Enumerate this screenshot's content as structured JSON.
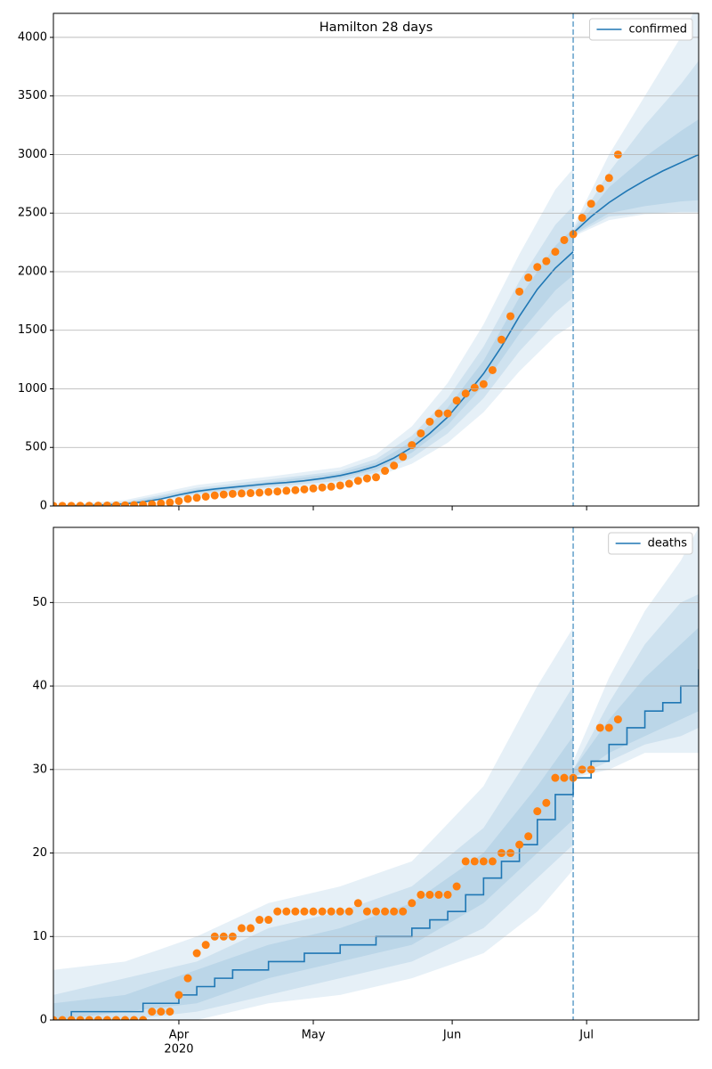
{
  "chart_data": [
    {
      "type": "line",
      "title": "Hamilton 28 days",
      "xlim": [
        0,
        144
      ],
      "xticks": [
        28,
        58,
        89,
        119
      ],
      "ylim": [
        0,
        4205
      ],
      "yticks": [
        0,
        500,
        1000,
        1500,
        2000,
        2500,
        3000,
        3500,
        4000
      ],
      "grid": true,
      "vline_x": 116,
      "legend": "upper right",
      "band_color": "#1f77b4",
      "band_opacity": 0.11,
      "bands": [
        {
          "x": [
            0,
            16,
            32,
            48,
            64,
            72,
            80,
            88,
            96,
            104,
            112,
            116
          ],
          "lower": [
            0,
            5,
            80,
            140,
            190,
            250,
            360,
            540,
            800,
            1150,
            1450,
            1550
          ],
          "upper": [
            5,
            50,
            180,
            250,
            330,
            440,
            680,
            1050,
            1550,
            2150,
            2700,
            2880
          ]
        },
        {
          "x": [
            0,
            16,
            32,
            48,
            64,
            72,
            80,
            88,
            96,
            104,
            112,
            116
          ],
          "lower": [
            0,
            10,
            100,
            160,
            215,
            285,
            410,
            620,
            920,
            1320,
            1650,
            1780
          ],
          "upper": [
            3,
            35,
            155,
            225,
            300,
            400,
            600,
            920,
            1360,
            1920,
            2400,
            2560
          ]
        },
        {
          "x": [
            0,
            16,
            32,
            48,
            64,
            72,
            80,
            88,
            96,
            104,
            112,
            116
          ],
          "lower": [
            0,
            14,
            112,
            175,
            238,
            310,
            455,
            690,
            1030,
            1470,
            1840,
            1970
          ],
          "upper": [
            1,
            25,
            140,
            205,
            282,
            370,
            550,
            840,
            1240,
            1780,
            2220,
            2370
          ]
        },
        {
          "x": [
            116,
            124,
            132,
            140,
            144
          ],
          "lower": [
            2300,
            2440,
            2490,
            2500,
            2500
          ],
          "upper": [
            2380,
            3000,
            3500,
            4000,
            4300
          ]
        },
        {
          "x": [
            116,
            124,
            132,
            140,
            144
          ],
          "lower": [
            2310,
            2470,
            2500,
            2510,
            2510
          ],
          "upper": [
            2360,
            2850,
            3250,
            3600,
            3800
          ]
        },
        {
          "x": [
            116,
            124,
            132,
            140,
            144
          ],
          "lower": [
            2320,
            2500,
            2560,
            2600,
            2610
          ],
          "upper": [
            2345,
            2720,
            2980,
            3200,
            3300
          ]
        }
      ],
      "series": [
        {
          "name": "confirmed",
          "color": "#1f77b4",
          "style": "line",
          "x": [
            0,
            4,
            8,
            12,
            16,
            20,
            24,
            28,
            32,
            36,
            40,
            44,
            48,
            52,
            56,
            60,
            64,
            68,
            72,
            76,
            80,
            84,
            88,
            92,
            96,
            100,
            104,
            108,
            112,
            116
          ],
          "values": [
            0,
            2,
            5,
            10,
            18,
            35,
            60,
            95,
            125,
            145,
            160,
            175,
            190,
            200,
            215,
            235,
            260,
            295,
            340,
            410,
            500,
            620,
            760,
            940,
            1130,
            1360,
            1620,
            1850,
            2030,
            2170
          ]
        },
        {
          "color": "#1f77b4",
          "style": "line",
          "x": [
            116,
            120,
            124,
            128,
            132,
            136,
            140,
            144
          ],
          "values": [
            2330,
            2470,
            2590,
            2690,
            2780,
            2860,
            2930,
            3000
          ]
        },
        {
          "color": "#ff7f0e",
          "style": "markers",
          "x": [
            0,
            2,
            4,
            6,
            8,
            10,
            12,
            14,
            16,
            18,
            20,
            22,
            24,
            26,
            28,
            30,
            32,
            34,
            36,
            38,
            40,
            42,
            44,
            46,
            48,
            50,
            52,
            54,
            56,
            58,
            60,
            62,
            64,
            66,
            68,
            70,
            72,
            74,
            76,
            78,
            80,
            82,
            84,
            86,
            88,
            90,
            92,
            94,
            96,
            98,
            100,
            102,
            104,
            106,
            108,
            110,
            112,
            114,
            116,
            118,
            120,
            122,
            124,
            126
          ],
          "values": [
            1,
            1,
            1,
            2,
            2,
            3,
            4,
            5,
            6,
            8,
            10,
            15,
            22,
            30,
            42,
            60,
            70,
            80,
            90,
            98,
            104,
            107,
            110,
            114,
            120,
            124,
            130,
            135,
            142,
            150,
            158,
            165,
            175,
            190,
            215,
            235,
            245,
            300,
            345,
            420,
            520,
            620,
            720,
            790,
            790,
            900,
            960,
            1010,
            1040,
            1160,
            1420,
            1620,
            1830,
            1950,
            2040,
            2090,
            2170,
            2270,
            2320,
            2460,
            2580,
            2710,
            2800,
            3000
          ]
        }
      ]
    },
    {
      "type": "line",
      "xlim": [
        0,
        144
      ],
      "xticks": [
        {
          "value": 28,
          "label": "Apr",
          "year": "2020"
        },
        {
          "value": 58,
          "label": "May"
        },
        {
          "value": 89,
          "label": "Jun"
        },
        {
          "value": 119,
          "label": "Jul"
        }
      ],
      "ylim": [
        0,
        59
      ],
      "yticks": [
        0,
        10,
        20,
        30,
        40,
        50
      ],
      "grid": true,
      "vline_x": 116,
      "legend": "upper right",
      "band_color": "#1f77b4",
      "band_opacity": 0.11,
      "bands": [
        {
          "x": [
            0,
            16,
            32,
            48,
            64,
            80,
            96,
            108,
            116
          ],
          "lower": [
            0,
            0,
            0,
            2,
            3,
            5,
            8,
            13,
            18
          ],
          "upper": [
            6,
            7,
            10,
            14,
            16,
            19,
            28,
            40,
            47
          ]
        },
        {
          "x": [
            0,
            16,
            32,
            48,
            64,
            80,
            96,
            108,
            116
          ],
          "lower": [
            0,
            0,
            1,
            3,
            5,
            7,
            11,
            17,
            21
          ],
          "upper": [
            3,
            5,
            7,
            11,
            13,
            16,
            23,
            33,
            40
          ]
        },
        {
          "x": [
            0,
            16,
            32,
            48,
            64,
            80,
            96,
            108,
            116
          ],
          "lower": [
            0,
            1,
            2,
            5,
            7,
            9,
            14,
            20,
            24
          ],
          "upper": [
            2,
            3,
            6,
            9,
            11,
            14,
            20,
            28,
            34
          ]
        },
        {
          "x": [
            116,
            124,
            132,
            140,
            144
          ],
          "lower": [
            29,
            30,
            32,
            32,
            32
          ],
          "upper": [
            31,
            41,
            49,
            55,
            59
          ]
        },
        {
          "x": [
            116,
            124,
            132,
            140,
            144
          ],
          "lower": [
            29,
            31,
            33,
            34,
            35
          ],
          "upper": [
            30,
            38,
            45,
            50,
            51
          ]
        },
        {
          "x": [
            116,
            124,
            132,
            140,
            144
          ],
          "lower": [
            29,
            32,
            34,
            36,
            37
          ],
          "upper": [
            30,
            36,
            41,
            45,
            47
          ]
        }
      ],
      "series": [
        {
          "name": "deaths",
          "color": "#1f77b4",
          "style": "line",
          "step": "post",
          "x": [
            0,
            4,
            8,
            12,
            16,
            20,
            24,
            28,
            32,
            36,
            40,
            44,
            48,
            52,
            56,
            60,
            64,
            68,
            72,
            76,
            80,
            84,
            88,
            92,
            96,
            100,
            104,
            108,
            112,
            116,
            120,
            124,
            128,
            132,
            136,
            140,
            144
          ],
          "values": [
            0,
            1,
            1,
            1,
            1,
            2,
            2,
            3,
            4,
            5,
            6,
            6,
            7,
            7,
            8,
            8,
            9,
            9,
            10,
            10,
            11,
            12,
            13,
            15,
            17,
            19,
            21,
            24,
            27,
            29,
            31,
            33,
            35,
            37,
            38,
            40,
            42
          ]
        },
        {
          "color": "#ff7f0e",
          "style": "markers",
          "x": [
            0,
            2,
            4,
            6,
            8,
            10,
            12,
            14,
            16,
            18,
            20,
            22,
            24,
            26,
            28,
            30,
            32,
            34,
            36,
            38,
            40,
            42,
            44,
            46,
            48,
            50,
            52,
            54,
            56,
            58,
            60,
            62,
            64,
            66,
            68,
            70,
            72,
            74,
            76,
            78,
            80,
            82,
            84,
            86,
            88,
            90,
            92,
            94,
            96,
            98,
            100,
            102,
            104,
            106,
            108,
            110,
            112,
            114,
            116,
            118,
            120,
            122,
            124,
            126
          ],
          "values": [
            0,
            0,
            0,
            0,
            0,
            0,
            0,
            0,
            0,
            0,
            0,
            1,
            1,
            1,
            3,
            5,
            8,
            9,
            10,
            10,
            10,
            11,
            11,
            12,
            12,
            13,
            13,
            13,
            13,
            13,
            13,
            13,
            13,
            13,
            14,
            13,
            13,
            13,
            13,
            13,
            14,
            15,
            15,
            15,
            15,
            16,
            19,
            19,
            19,
            19,
            20,
            20,
            21,
            22,
            25,
            26,
            29,
            29,
            29,
            30,
            30,
            35,
            35,
            36
          ]
        }
      ]
    }
  ]
}
